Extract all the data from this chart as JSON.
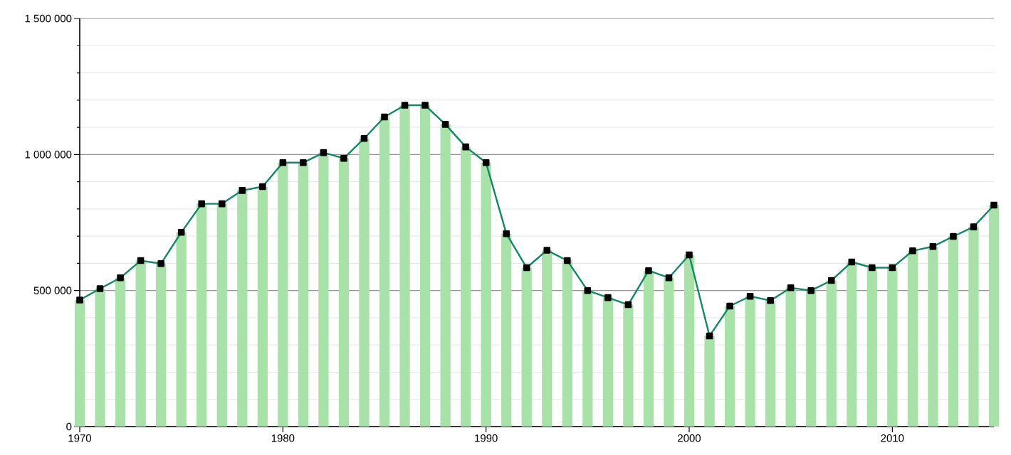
{
  "chart_data": {
    "type": "bar",
    "x": [
      1970,
      1971,
      1972,
      1973,
      1974,
      1975,
      1976,
      1977,
      1978,
      1979,
      1980,
      1981,
      1982,
      1983,
      1984,
      1985,
      1986,
      1987,
      1988,
      1989,
      1990,
      1991,
      1992,
      1993,
      1994,
      1995,
      1996,
      1997,
      1998,
      1999,
      2000,
      2001,
      2002,
      2003,
      2004,
      2005,
      2006,
      2007,
      2008,
      2009,
      2010,
      2011,
      2012,
      2013,
      2014,
      2015
    ],
    "series": [
      {
        "color": "#a9e2a9",
        "values": [
          465000,
          507000,
          547000,
          610000,
          599000,
          714000,
          819000,
          819000,
          868000,
          882000,
          970000,
          970000,
          1007000,
          986000,
          1059000,
          1138000,
          1181000,
          1181000,
          1111000,
          1028000,
          970000,
          709000,
          584000,
          648000,
          610000,
          500000,
          474000,
          448000,
          573000,
          547000,
          631000,
          333000,
          443000,
          479000,
          463000,
          510000,
          500000,
          537000,
          605000,
          584000,
          584000,
          646000,
          662000,
          699000,
          734000,
          814000
        ]
      },
      {
        "type": "line",
        "color": "#118866",
        "marker": "square",
        "values": [
          465000,
          507000,
          547000,
          610000,
          599000,
          714000,
          819000,
          819000,
          868000,
          882000,
          970000,
          970000,
          1007000,
          986000,
          1059000,
          1138000,
          1181000,
          1181000,
          1111000,
          1028000,
          970000,
          709000,
          584000,
          648000,
          610000,
          500000,
          474000,
          448000,
          573000,
          547000,
          631000,
          333000,
          443000,
          479000,
          463000,
          510000,
          500000,
          537000,
          605000,
          584000,
          584000,
          646000,
          662000,
          699000,
          734000,
          814000
        ]
      }
    ],
    "xlim": [
      1970,
      2015
    ],
    "xticks": [
      1970,
      1980,
      1990,
      2000,
      2010
    ],
    "ylim": [
      0,
      1500000
    ],
    "yticks": [
      {
        "value": 0,
        "label": "0"
      },
      {
        "value": 100000,
        "label": null
      },
      {
        "value": 200000,
        "label": null
      },
      {
        "value": 300000,
        "label": null
      },
      {
        "value": 400000,
        "label": null
      },
      {
        "value": 500000,
        "label": "500 000"
      },
      {
        "value": 600000,
        "label": null
      },
      {
        "value": 700000,
        "label": null
      },
      {
        "value": 800000,
        "label": null
      },
      {
        "value": 900000,
        "label": null
      },
      {
        "value": 1000000,
        "label": "1 000 000"
      },
      {
        "value": 1100000,
        "label": null
      },
      {
        "value": 1200000,
        "label": null
      },
      {
        "value": 1300000,
        "label": null
      },
      {
        "value": 1400000,
        "label": null
      },
      {
        "value": 1500000,
        "label": "1 500 000"
      }
    ],
    "grid": "y"
  }
}
